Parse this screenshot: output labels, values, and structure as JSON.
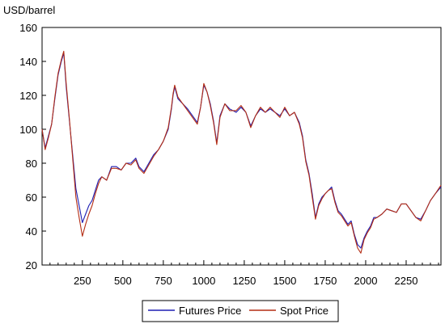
{
  "chart_data": {
    "type": "line",
    "title": "",
    "xlabel": "",
    "ylabel": "USD/barrel",
    "xlim": [
      1,
      2465
    ],
    "ylim": [
      20,
      160
    ],
    "x_ticks": [
      250,
      500,
      750,
      1000,
      1250,
      1500,
      1750,
      2000,
      2250
    ],
    "y_ticks": [
      20,
      40,
      60,
      80,
      100,
      120,
      140,
      160
    ],
    "grid": false,
    "legend_position": "bottom-center",
    "series": [
      {
        "name": "Futures Price",
        "color": "#1f1fb4",
        "points": [
          [
            1,
            100
          ],
          [
            20,
            89
          ],
          [
            40,
            96
          ],
          [
            60,
            103
          ],
          [
            80,
            118
          ],
          [
            100,
            132
          ],
          [
            120,
            140
          ],
          [
            135,
            145
          ],
          [
            150,
            125
          ],
          [
            170,
            105
          ],
          [
            190,
            85
          ],
          [
            210,
            65
          ],
          [
            230,
            55
          ],
          [
            250,
            45
          ],
          [
            270,
            50
          ],
          [
            290,
            55
          ],
          [
            310,
            58
          ],
          [
            330,
            64
          ],
          [
            350,
            70
          ],
          [
            370,
            72
          ],
          [
            400,
            70
          ],
          [
            430,
            78
          ],
          [
            460,
            78
          ],
          [
            490,
            76
          ],
          [
            520,
            80
          ],
          [
            550,
            80
          ],
          [
            580,
            83
          ],
          [
            600,
            78
          ],
          [
            630,
            75
          ],
          [
            660,
            80
          ],
          [
            690,
            85
          ],
          [
            720,
            88
          ],
          [
            750,
            93
          ],
          [
            780,
            100
          ],
          [
            800,
            112
          ],
          [
            810,
            120
          ],
          [
            820,
            125
          ],
          [
            840,
            118
          ],
          [
            870,
            115
          ],
          [
            900,
            112
          ],
          [
            930,
            108
          ],
          [
            960,
            104
          ],
          [
            980,
            113
          ],
          [
            1000,
            126
          ],
          [
            1020,
            122
          ],
          [
            1040,
            115
          ],
          [
            1060,
            105
          ],
          [
            1080,
            92
          ],
          [
            1100,
            108
          ],
          [
            1130,
            115
          ],
          [
            1160,
            112
          ],
          [
            1200,
            110
          ],
          [
            1230,
            113
          ],
          [
            1260,
            110
          ],
          [
            1290,
            102
          ],
          [
            1320,
            108
          ],
          [
            1350,
            112
          ],
          [
            1380,
            110
          ],
          [
            1410,
            112
          ],
          [
            1440,
            110
          ],
          [
            1470,
            108
          ],
          [
            1500,
            112
          ],
          [
            1530,
            108
          ],
          [
            1560,
            110
          ],
          [
            1590,
            104
          ],
          [
            1610,
            96
          ],
          [
            1630,
            82
          ],
          [
            1650,
            74
          ],
          [
            1670,
            62
          ],
          [
            1690,
            48
          ],
          [
            1710,
            56
          ],
          [
            1730,
            60
          ],
          [
            1750,
            62
          ],
          [
            1770,
            64
          ],
          [
            1790,
            66
          ],
          [
            1810,
            58
          ],
          [
            1830,
            52
          ],
          [
            1850,
            50
          ],
          [
            1870,
            47
          ],
          [
            1890,
            44
          ],
          [
            1910,
            46
          ],
          [
            1930,
            38
          ],
          [
            1950,
            32
          ],
          [
            1970,
            30
          ],
          [
            1990,
            36
          ],
          [
            2010,
            40
          ],
          [
            2030,
            43
          ],
          [
            2050,
            48
          ],
          [
            2070,
            48
          ],
          [
            2100,
            50
          ],
          [
            2130,
            53
          ],
          [
            2160,
            52
          ],
          [
            2190,
            51
          ],
          [
            2220,
            56
          ],
          [
            2250,
            56
          ],
          [
            2280,
            52
          ],
          [
            2310,
            48
          ],
          [
            2340,
            47
          ],
          [
            2370,
            52
          ],
          [
            2400,
            58
          ],
          [
            2430,
            62
          ],
          [
            2465,
            66
          ]
        ]
      },
      {
        "name": "Spot Price",
        "color": "#b42d14",
        "points": [
          [
            1,
            100
          ],
          [
            20,
            88
          ],
          [
            40,
            95
          ],
          [
            60,
            103
          ],
          [
            80,
            119
          ],
          [
            100,
            133
          ],
          [
            120,
            141
          ],
          [
            135,
            146
          ],
          [
            150,
            127
          ],
          [
            170,
            106
          ],
          [
            190,
            83
          ],
          [
            210,
            60
          ],
          [
            230,
            48
          ],
          [
            250,
            37
          ],
          [
            270,
            44
          ],
          [
            290,
            50
          ],
          [
            310,
            55
          ],
          [
            330,
            62
          ],
          [
            350,
            68
          ],
          [
            370,
            72
          ],
          [
            400,
            70
          ],
          [
            430,
            77
          ],
          [
            460,
            77
          ],
          [
            490,
            76
          ],
          [
            520,
            80
          ],
          [
            550,
            79
          ],
          [
            580,
            82
          ],
          [
            600,
            77
          ],
          [
            630,
            74
          ],
          [
            660,
            79
          ],
          [
            690,
            84
          ],
          [
            720,
            88
          ],
          [
            750,
            93
          ],
          [
            780,
            101
          ],
          [
            800,
            113
          ],
          [
            810,
            121
          ],
          [
            820,
            126
          ],
          [
            840,
            119
          ],
          [
            870,
            115
          ],
          [
            900,
            111
          ],
          [
            930,
            107
          ],
          [
            960,
            103
          ],
          [
            980,
            113
          ],
          [
            1000,
            127
          ],
          [
            1020,
            122
          ],
          [
            1040,
            114
          ],
          [
            1060,
            104
          ],
          [
            1080,
            91
          ],
          [
            1100,
            107
          ],
          [
            1130,
            115
          ],
          [
            1160,
            111
          ],
          [
            1200,
            111
          ],
          [
            1230,
            114
          ],
          [
            1260,
            110
          ],
          [
            1290,
            101
          ],
          [
            1320,
            108
          ],
          [
            1350,
            113
          ],
          [
            1380,
            110
          ],
          [
            1410,
            113
          ],
          [
            1440,
            110
          ],
          [
            1470,
            107
          ],
          [
            1500,
            113
          ],
          [
            1530,
            108
          ],
          [
            1560,
            110
          ],
          [
            1590,
            103
          ],
          [
            1610,
            95
          ],
          [
            1630,
            81
          ],
          [
            1650,
            73
          ],
          [
            1670,
            60
          ],
          [
            1690,
            47
          ],
          [
            1710,
            55
          ],
          [
            1730,
            59
          ],
          [
            1750,
            62
          ],
          [
            1770,
            64
          ],
          [
            1790,
            65
          ],
          [
            1810,
            57
          ],
          [
            1830,
            51
          ],
          [
            1850,
            49
          ],
          [
            1870,
            46
          ],
          [
            1890,
            43
          ],
          [
            1910,
            45
          ],
          [
            1930,
            37
          ],
          [
            1950,
            30
          ],
          [
            1970,
            27
          ],
          [
            1990,
            35
          ],
          [
            2010,
            39
          ],
          [
            2030,
            42
          ],
          [
            2050,
            47
          ],
          [
            2070,
            48
          ],
          [
            2100,
            50
          ],
          [
            2130,
            53
          ],
          [
            2160,
            52
          ],
          [
            2190,
            51
          ],
          [
            2220,
            56
          ],
          [
            2250,
            56
          ],
          [
            2280,
            52
          ],
          [
            2310,
            48
          ],
          [
            2340,
            46
          ],
          [
            2370,
            52
          ],
          [
            2400,
            58
          ],
          [
            2430,
            62
          ],
          [
            2465,
            67
          ]
        ]
      }
    ]
  }
}
